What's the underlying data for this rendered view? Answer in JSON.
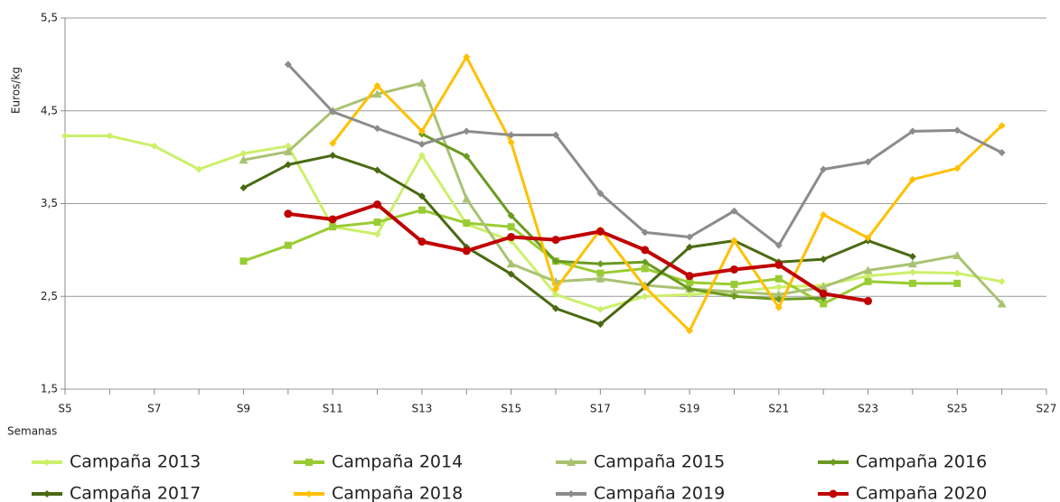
{
  "chart_data": {
    "type": "line",
    "ylabel": "Euros/kg",
    "xlabel": "Semanas",
    "categories": [
      "S5",
      null,
      "S7",
      null,
      "S9",
      null,
      "S11",
      null,
      "S13",
      null,
      "S15",
      null,
      "S17",
      null,
      "S19",
      null,
      "S21",
      null,
      "S23",
      null,
      "S25",
      null,
      "S27"
    ],
    "ylim": [
      1.5,
      5.5
    ],
    "yticks": [
      {
        "value": 1.5,
        "label": "1,5"
      },
      {
        "value": 2.5,
        "label": "2,5"
      },
      {
        "value": 3.5,
        "label": "3,5"
      },
      {
        "value": 4.5,
        "label": "4,5"
      },
      {
        "value": 5.5,
        "label": "5,5"
      }
    ],
    "grid": true,
    "legend": "bottom",
    "series": [
      {
        "name": "Campaña 2013",
        "color": "#ccf06a",
        "marker": "diamond",
        "values": [
          4.23,
          4.23,
          4.12,
          3.87,
          4.04,
          4.12,
          3.25,
          3.17,
          4.02,
          3.28,
          3.1,
          2.52,
          2.36,
          2.5,
          2.52,
          2.55,
          2.6,
          2.62,
          2.72,
          2.76,
          2.75,
          2.66,
          null
        ]
      },
      {
        "name": "Campaña 2014",
        "color": "#99cc33",
        "marker": "square",
        "values": [
          null,
          null,
          null,
          null,
          2.88,
          3.05,
          3.25,
          3.3,
          3.43,
          3.29,
          3.25,
          2.88,
          2.75,
          2.8,
          2.65,
          2.63,
          2.69,
          2.42,
          2.66,
          2.64,
          2.64,
          null,
          null
        ]
      },
      {
        "name": "Campaña 2015",
        "color": "#a9c272",
        "marker": "triangle",
        "values": [
          null,
          null,
          null,
          null,
          3.97,
          4.06,
          4.5,
          4.68,
          4.8,
          3.55,
          2.85,
          2.66,
          2.69,
          2.62,
          2.58,
          2.55,
          2.52,
          2.6,
          2.78,
          2.85,
          2.94,
          2.42,
          null
        ]
      },
      {
        "name": "Campaña 2016",
        "color": "#6b9a20",
        "marker": "diamond",
        "values": [
          null,
          null,
          null,
          null,
          null,
          null,
          null,
          null,
          4.25,
          4.01,
          3.37,
          2.88,
          2.85,
          2.87,
          2.58,
          2.5,
          2.47,
          2.48,
          null,
          null,
          null,
          null,
          null
        ]
      },
      {
        "name": "Campaña 2017",
        "color": "#4a6a12",
        "marker": "diamond",
        "values": [
          null,
          null,
          null,
          null,
          3.67,
          3.92,
          4.02,
          3.86,
          3.58,
          3.03,
          2.74,
          2.37,
          2.2,
          2.6,
          3.03,
          3.1,
          2.87,
          2.9,
          3.1,
          2.93,
          null,
          null,
          null
        ]
      },
      {
        "name": "Campaña 2018",
        "color": "#ffc000",
        "marker": "diamond",
        "values": [
          null,
          null,
          null,
          null,
          null,
          null,
          4.15,
          4.77,
          4.28,
          5.08,
          4.16,
          2.58,
          3.22,
          2.6,
          2.13,
          3.1,
          2.38,
          3.38,
          3.13,
          3.76,
          3.88,
          4.34,
          null
        ]
      },
      {
        "name": "Campaña 2019",
        "color": "#8c8c8c",
        "marker": "diamond",
        "values": [
          null,
          null,
          null,
          null,
          null,
          5.0,
          4.49,
          4.31,
          4.14,
          4.28,
          4.24,
          4.24,
          3.61,
          3.19,
          3.14,
          3.42,
          3.05,
          3.87,
          3.95,
          4.28,
          4.29,
          4.05,
          null
        ]
      },
      {
        "name": "Campaña 2020",
        "color": "#c00000",
        "marker": "circle",
        "values": [
          null,
          null,
          null,
          null,
          null,
          3.39,
          3.33,
          3.49,
          3.09,
          2.99,
          3.14,
          3.11,
          3.2,
          3.0,
          2.72,
          2.79,
          2.84,
          2.53,
          2.45,
          null,
          null,
          null,
          null
        ]
      }
    ]
  }
}
